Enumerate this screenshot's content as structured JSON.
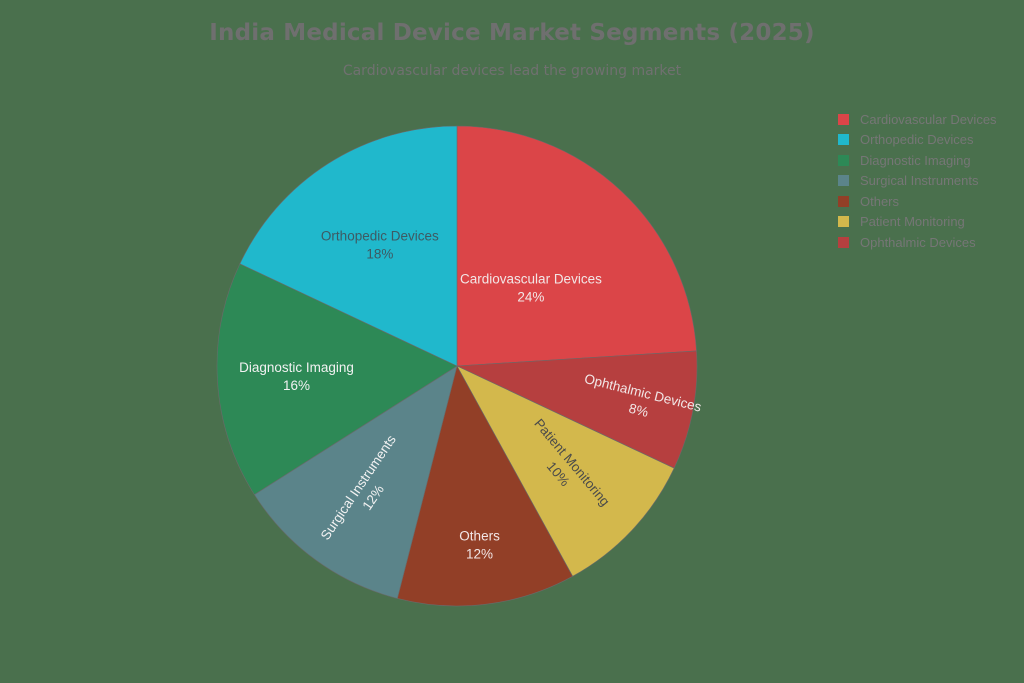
{
  "chart_data": {
    "type": "pie",
    "title": "India Medical Device Market Segments (2025)",
    "subtitle": "Cardiovascular devices lead the growing market",
    "slices": [
      {
        "label": "Cardiovascular Devices",
        "value": 24,
        "pct_label": "24%",
        "color": "#db4548",
        "text_color": "#f2e6e6"
      },
      {
        "label": "Ophthalmic Devices",
        "value": 8,
        "pct_label": "8%",
        "color": "#b63f3f",
        "text_color": "#f2e6e6"
      },
      {
        "label": "Patient Monitoring",
        "value": 10,
        "pct_label": "10%",
        "color": "#d3b84c",
        "text_color": "#4a4a4a"
      },
      {
        "label": "Others",
        "value": 12,
        "pct_label": "12%",
        "color": "#923f27",
        "text_color": "#f2e6e6"
      },
      {
        "label": "Surgical Instruments",
        "value": 12,
        "pct_label": "12%",
        "color": "#5b848a",
        "text_color": "#f2f2f2"
      },
      {
        "label": "Diagnostic Imaging",
        "value": 16,
        "pct_label": "16%",
        "color": "#2d8956",
        "text_color": "#f2f2f2"
      },
      {
        "label": "Orthopedic Devices",
        "value": 18,
        "pct_label": "18%",
        "color": "#20b8cc",
        "text_color": "#3e5a63"
      }
    ],
    "legend": {
      "position": "right",
      "order": [
        "Cardiovascular Devices",
        "Orthopedic Devices",
        "Diagnostic Imaging",
        "Surgical Instruments",
        "Others",
        "Patient Monitoring",
        "Ophthalmic Devices"
      ]
    },
    "start_angle_deg": 0,
    "direction": "clockwise"
  },
  "page": {
    "title": "India Medical Device Market Segments (2025)",
    "subtitle": "Cardiovascular devices lead the growing market",
    "background": "#4a704d"
  }
}
